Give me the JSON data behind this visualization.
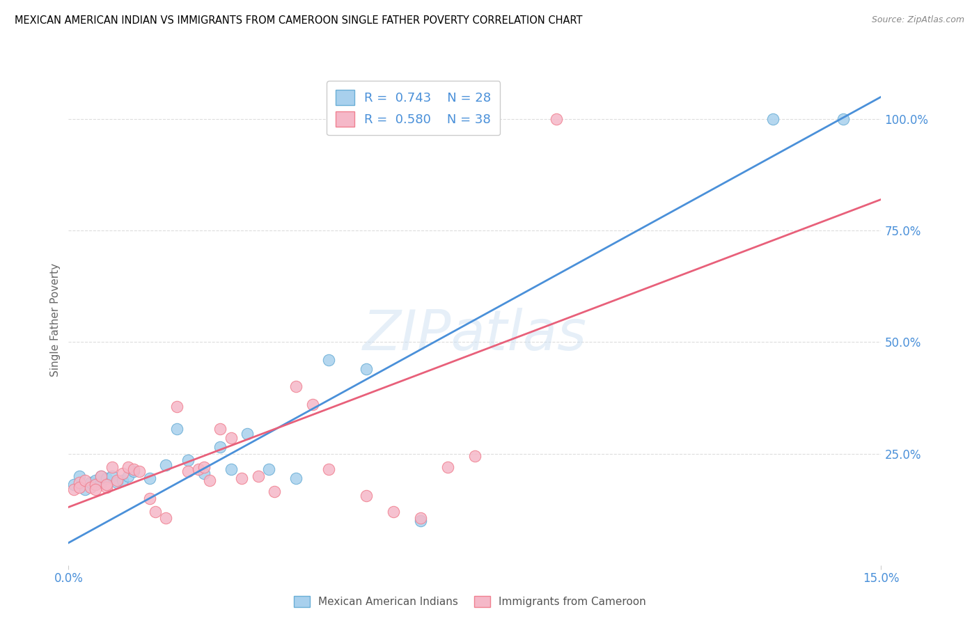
{
  "title": "MEXICAN AMERICAN INDIAN VS IMMIGRANTS FROM CAMEROON SINGLE FATHER POVERTY CORRELATION CHART",
  "source": "Source: ZipAtlas.com",
  "ylabel": "Single Father Poverty",
  "ytick_labels": [
    "100.0%",
    "75.0%",
    "50.0%",
    "25.0%"
  ],
  "ytick_values": [
    1.0,
    0.75,
    0.5,
    0.25
  ],
  "xtick_labels": [
    "0.0%",
    "15.0%"
  ],
  "xtick_values": [
    0.0,
    0.15
  ],
  "xlim": [
    0.0,
    0.15
  ],
  "ylim": [
    0.0,
    1.1
  ],
  "watermark": "ZIPatlas",
  "blue_R": "0.743",
  "blue_N": "28",
  "pink_R": "0.580",
  "pink_N": "38",
  "blue_color": "#a8d0ed",
  "pink_color": "#f5b8c8",
  "blue_edge_color": "#6aaed6",
  "pink_edge_color": "#f08090",
  "blue_line_color": "#4a90d9",
  "pink_line_color": "#e8607a",
  "legend_label_blue": "Mexican American Indians",
  "legend_label_pink": "Immigrants from Cameroon",
  "blue_points_x": [
    0.001,
    0.002,
    0.003,
    0.004,
    0.005,
    0.006,
    0.006,
    0.007,
    0.008,
    0.009,
    0.01,
    0.011,
    0.012,
    0.015,
    0.018,
    0.02,
    0.022,
    0.025,
    0.028,
    0.03,
    0.033,
    0.037,
    0.042,
    0.048,
    0.055,
    0.065,
    0.13,
    0.143
  ],
  "blue_points_y": [
    0.18,
    0.2,
    0.17,
    0.185,
    0.19,
    0.185,
    0.2,
    0.195,
    0.2,
    0.185,
    0.19,
    0.2,
    0.21,
    0.195,
    0.225,
    0.305,
    0.235,
    0.205,
    0.265,
    0.215,
    0.295,
    0.215,
    0.195,
    0.46,
    0.44,
    0.1,
    1.0,
    1.0
  ],
  "pink_points_x": [
    0.001,
    0.002,
    0.002,
    0.003,
    0.004,
    0.005,
    0.005,
    0.006,
    0.007,
    0.007,
    0.008,
    0.009,
    0.01,
    0.011,
    0.012,
    0.013,
    0.015,
    0.016,
    0.018,
    0.02,
    0.022,
    0.024,
    0.025,
    0.026,
    0.028,
    0.03,
    0.032,
    0.035,
    0.038,
    0.042,
    0.045,
    0.048,
    0.055,
    0.06,
    0.065,
    0.07,
    0.075,
    0.09
  ],
  "pink_points_y": [
    0.17,
    0.185,
    0.175,
    0.19,
    0.175,
    0.18,
    0.17,
    0.2,
    0.175,
    0.18,
    0.22,
    0.19,
    0.205,
    0.22,
    0.215,
    0.21,
    0.15,
    0.12,
    0.105,
    0.355,
    0.21,
    0.215,
    0.22,
    0.19,
    0.305,
    0.285,
    0.195,
    0.2,
    0.165,
    0.4,
    0.36,
    0.215,
    0.155,
    0.12,
    0.105,
    0.22,
    0.245,
    1.0
  ],
  "blue_line": {
    "x0": 0.0,
    "y0": 0.05,
    "x1": 0.15,
    "y1": 1.05
  },
  "pink_line": {
    "x0": 0.0,
    "y0": 0.13,
    "x1": 0.15,
    "y1": 0.82
  },
  "bg_color": "#ffffff",
  "grid_color": "#dddddd",
  "axis_color": "#4a90d9",
  "ylabel_color": "#666666"
}
